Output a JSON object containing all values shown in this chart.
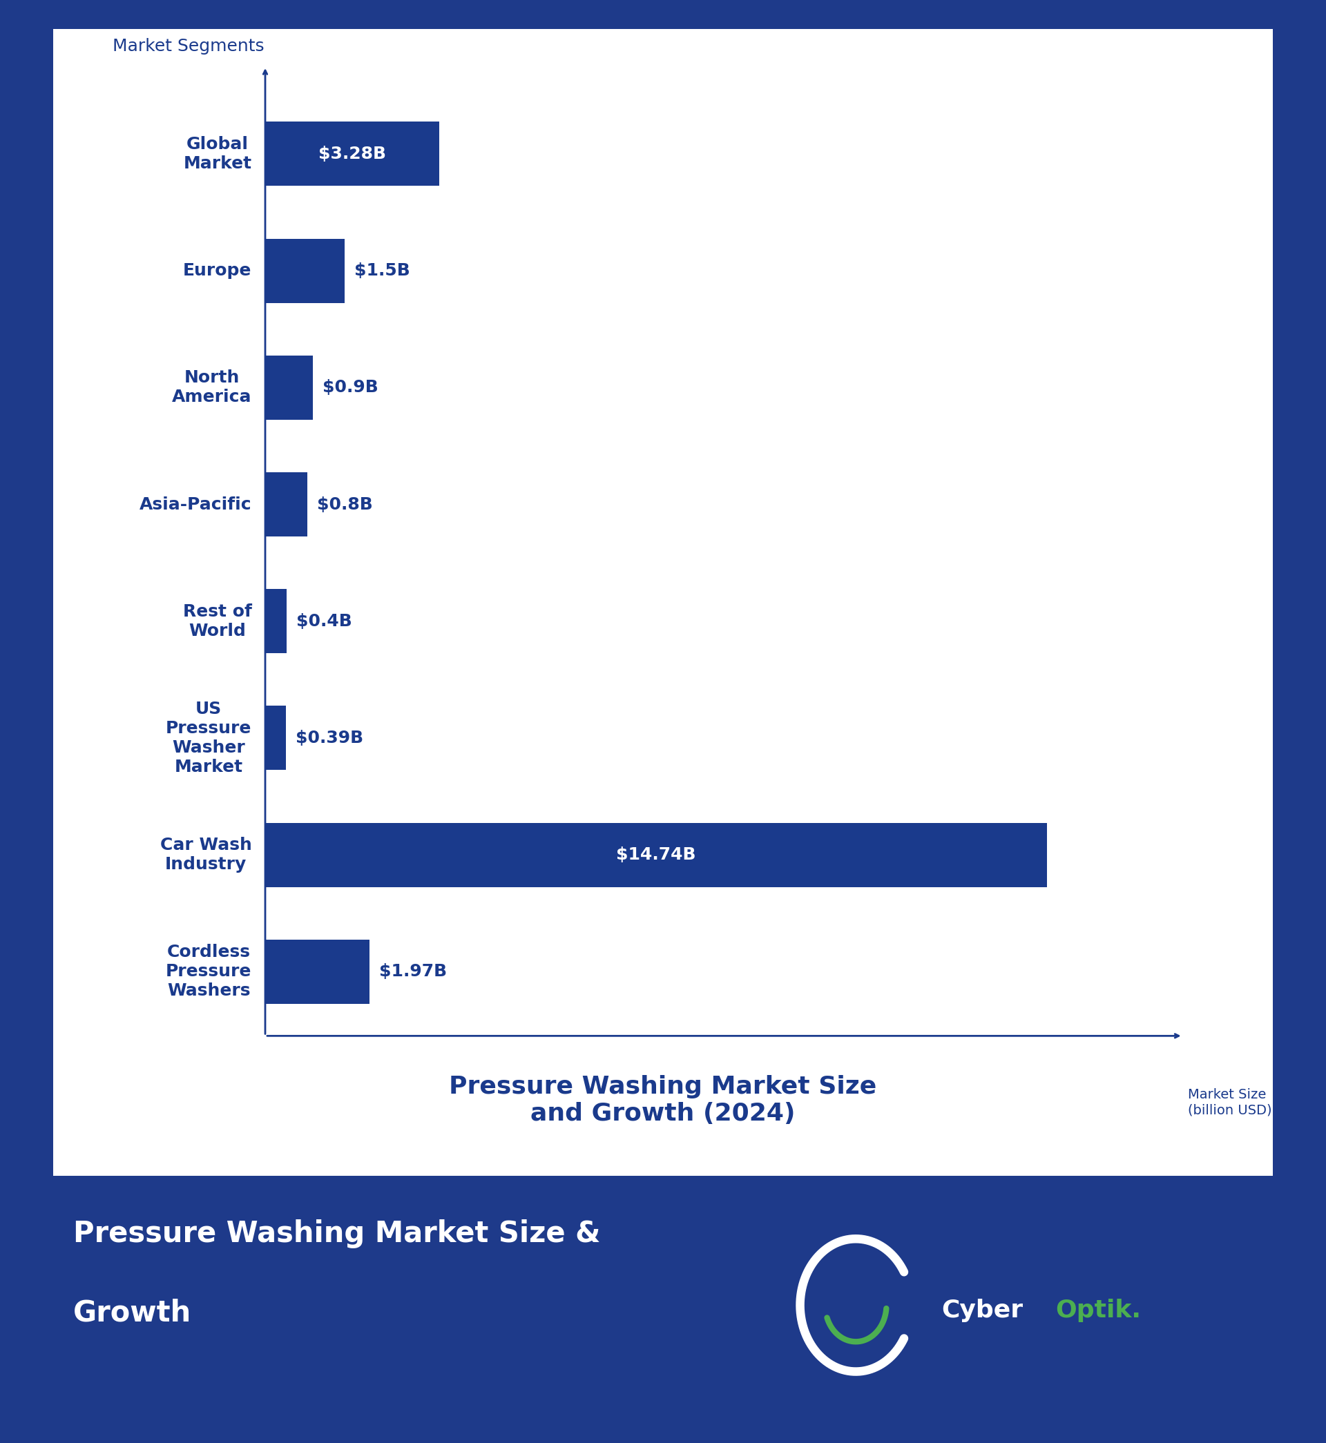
{
  "labels_display": [
    "Global\nMarket",
    "Europe",
    "North\nAmerica",
    "Asia-Pacific",
    "Rest of\nWorld",
    "US\nPressure\nWasher\nMarket",
    "Car Wash\nIndustry",
    "Cordless\nPressure\nWashers"
  ],
  "values": [
    3.28,
    1.5,
    0.9,
    0.8,
    0.4,
    0.39,
    14.74,
    1.97
  ],
  "value_labels": [
    "$3.28B",
    "$1.5B",
    "$0.9B",
    "$0.8B",
    "$0.4B",
    "$0.39B",
    "$14.74B",
    "$1.97B"
  ],
  "inside_bar_indices": [
    0,
    6
  ],
  "bar_color": "#1a3a8c",
  "background_outer": "#1e3a8a",
  "background_inner": "#ffffff",
  "chart_title": "Pressure Washing Market Size\nand Growth (2024)",
  "chart_title_color": "#1a3a8c",
  "y_axis_label": "Market Segments",
  "x_axis_label": "Market Size\n(billion USD)",
  "footer_text_line1": "Pressure Washing Market Size &",
  "footer_text_line2": "Growth",
  "footer_text_color": "#ffffff",
  "brand_cyber": "Cyber",
  "brand_optik": "Optik.",
  "brand_color_cyber": "#ffffff",
  "brand_color_optik": "#4caf50",
  "border_color": "#3db86a",
  "xlim_max": 17.5,
  "bar_height": 0.55,
  "label_fontsize": 18,
  "title_fontsize": 26,
  "footer_fontsize": 30,
  "brand_fontsize": 26
}
